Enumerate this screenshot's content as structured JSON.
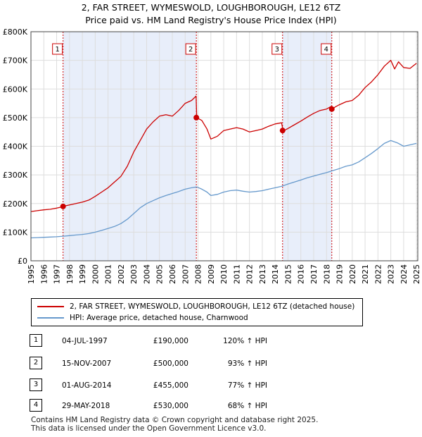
{
  "chart_data": {
    "type": "line",
    "title": "2, FAR STREET, WYMESWOLD, LOUGHBOROUGH, LE12 6TZ",
    "subtitle": "Price paid vs. HM Land Registry's House Price Index (HPI)",
    "xlim": [
      1995,
      2025.1
    ],
    "ylim": [
      0,
      800000
    ],
    "x_ticks": [
      1995,
      1996,
      1997,
      1998,
      1999,
      2000,
      2001,
      2002,
      2003,
      2004,
      2005,
      2006,
      2007,
      2008,
      2009,
      2010,
      2011,
      2012,
      2013,
      2014,
      2015,
      2016,
      2017,
      2018,
      2019,
      2020,
      2021,
      2022,
      2023,
      2024,
      2025
    ],
    "x_tick_labels": [
      "1995",
      "1996",
      "1997",
      "1998",
      "1999",
      "2000",
      "2001",
      "2002",
      "2003",
      "2004",
      "2005",
      "2006",
      "2007",
      "2008",
      "2009",
      "2010",
      "2011",
      "2012",
      "2013",
      "2014",
      "2015",
      "2016",
      "2017",
      "2018",
      "2019",
      "2020",
      "2021",
      "2022",
      "2023",
      "2024",
      "2025"
    ],
    "y_ticks": [
      0,
      100000,
      200000,
      300000,
      400000,
      500000,
      600000,
      700000,
      800000
    ],
    "y_tick_labels": [
      "£0",
      "£100K",
      "£200K",
      "£300K",
      "£400K",
      "£500K",
      "£600K",
      "£700K",
      "£800K"
    ],
    "grid": true,
    "series": [
      {
        "name": "2, FAR STREET, WYMESWOLD, LOUGHBOROUGH, LE12 6TZ (detached house)",
        "color": "#cc0000",
        "x": [
          1995.0,
          1995.5,
          1996.0,
          1996.5,
          1997.0,
          1997.4,
          1997.5,
          1998.0,
          1998.5,
          1999.0,
          1999.5,
          2000.0,
          2000.5,
          2001.0,
          2001.5,
          2002.0,
          2002.5,
          2003.0,
          2003.5,
          2004.0,
          2004.5,
          2005.0,
          2005.5,
          2006.0,
          2006.5,
          2007.0,
          2007.5,
          2007.85,
          2007.9,
          2008.3,
          2008.7,
          2009.0,
          2009.5,
          2010.0,
          2010.5,
          2011.0,
          2011.5,
          2012.0,
          2012.5,
          2013.0,
          2013.5,
          2014.0,
          2014.5,
          2014.6,
          2014.7,
          2015.0,
          2015.5,
          2016.0,
          2016.5,
          2017.0,
          2017.5,
          2018.0,
          2018.4,
          2018.45,
          2018.7,
          2019.0,
          2019.5,
          2020.0,
          2020.5,
          2021.0,
          2021.5,
          2022.0,
          2022.5,
          2023.0,
          2023.3,
          2023.6,
          2024.0,
          2024.5,
          2025.0
        ],
        "y": [
          172000,
          175000,
          178000,
          180000,
          184000,
          188000,
          190000,
          195000,
          200000,
          205000,
          212000,
          225000,
          240000,
          255000,
          275000,
          295000,
          330000,
          380000,
          420000,
          460000,
          485000,
          505000,
          510000,
          505000,
          525000,
          550000,
          560000,
          575000,
          500000,
          490000,
          460000,
          425000,
          435000,
          455000,
          460000,
          465000,
          460000,
          450000,
          455000,
          460000,
          470000,
          478000,
          482000,
          460000,
          455000,
          462000,
          475000,
          488000,
          502000,
          515000,
          525000,
          530000,
          540000,
          530000,
          538000,
          545000,
          555000,
          560000,
          578000,
          605000,
          625000,
          650000,
          680000,
          700000,
          670000,
          695000,
          675000,
          672000,
          690000
        ]
      },
      {
        "name": "HPI: Average price, detached house, Charnwood",
        "color": "#6699cc",
        "x": [
          1995.0,
          1995.5,
          1996.0,
          1996.5,
          1997.0,
          1997.5,
          1998.0,
          1998.5,
          1999.0,
          1999.5,
          2000.0,
          2000.5,
          2001.0,
          2001.5,
          2002.0,
          2002.5,
          2003.0,
          2003.5,
          2004.0,
          2004.5,
          2005.0,
          2005.5,
          2006.0,
          2006.5,
          2007.0,
          2007.5,
          2007.9,
          2008.3,
          2008.7,
          2009.0,
          2009.5,
          2010.0,
          2010.5,
          2011.0,
          2011.5,
          2012.0,
          2012.5,
          2013.0,
          2013.5,
          2014.0,
          2014.5,
          2015.0,
          2015.5,
          2016.0,
          2016.5,
          2017.0,
          2017.5,
          2018.0,
          2018.5,
          2019.0,
          2019.5,
          2020.0,
          2020.5,
          2021.0,
          2021.5,
          2022.0,
          2022.5,
          2023.0,
          2023.5,
          2024.0,
          2024.5,
          2025.0
        ],
        "y": [
          80000,
          81000,
          82000,
          83000,
          84000,
          86000,
          88000,
          90000,
          92000,
          95000,
          100000,
          106000,
          113000,
          120000,
          130000,
          145000,
          165000,
          185000,
          200000,
          210000,
          220000,
          228000,
          235000,
          242000,
          250000,
          255000,
          258000,
          250000,
          240000,
          228000,
          232000,
          240000,
          245000,
          247000,
          243000,
          240000,
          242000,
          245000,
          250000,
          255000,
          260000,
          268000,
          275000,
          282000,
          290000,
          296000,
          302000,
          308000,
          315000,
          322000,
          330000,
          335000,
          345000,
          360000,
          375000,
          392000,
          410000,
          420000,
          412000,
          400000,
          405000,
          410000
        ]
      }
    ],
    "sales": [
      {
        "label": "1",
        "x": 1997.5,
        "y": 190000
      },
      {
        "label": "2",
        "x": 2007.87,
        "y": 500000
      },
      {
        "label": "3",
        "x": 2014.58,
        "y": 455000
      },
      {
        "label": "4",
        "x": 2018.41,
        "y": 530000
      }
    ],
    "shaded_ranges": [
      [
        1997.5,
        2007.87
      ],
      [
        2014.58,
        2018.41
      ]
    ],
    "hatch_from": 2025.0
  },
  "legend": {
    "property_label": "2, FAR STREET, WYMESWOLD, LOUGHBOROUGH, LE12 6TZ (detached house)",
    "hpi_label": "HPI: Average price, detached house, Charnwood"
  },
  "table": [
    {
      "num": "1",
      "date": "04-JUL-1997",
      "price": "£190,000",
      "hpi": "120% ↑ HPI"
    },
    {
      "num": "2",
      "date": "15-NOV-2007",
      "price": "£500,000",
      "hpi": "93% ↑ HPI"
    },
    {
      "num": "3",
      "date": "01-AUG-2014",
      "price": "£455,000",
      "hpi": "77% ↑ HPI"
    },
    {
      "num": "4",
      "date": "29-MAY-2018",
      "price": "£530,000",
      "hpi": "68% ↑ HPI"
    }
  ],
  "footer": {
    "line1": "Contains HM Land Registry data © Crown copyright and database right 2025.",
    "line2": "This data is licensed under the Open Government Licence v3.0."
  },
  "colors": {
    "property": "#cc0000",
    "hpi": "#6699cc",
    "shade": "#e8eefa"
  }
}
